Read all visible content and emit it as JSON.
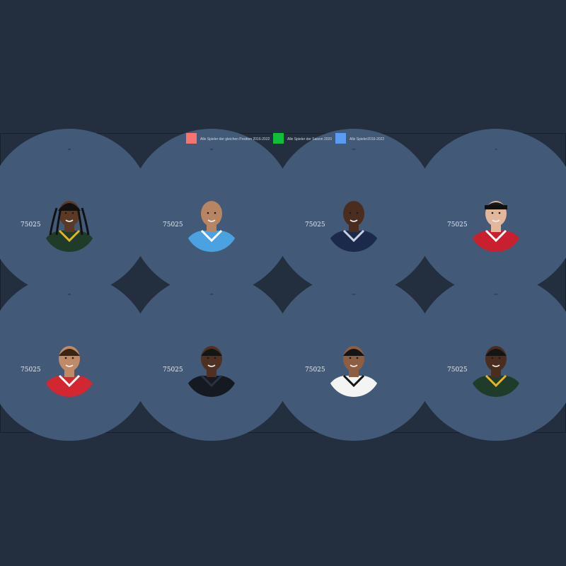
{
  "legend": {
    "items": [
      {
        "label": "Alle Spieler der gleichen Position 2016-2022",
        "color": "#f87272"
      },
      {
        "label": "Alle Spieler der Saison 2020",
        "color": "#0fbf3c"
      },
      {
        "label": "Alle Spieler2016-2022",
        "color": "#5b9cf0"
      }
    ]
  },
  "colors": {
    "page_background": "#232f3e",
    "panel_background": "#425a78",
    "panel_border": "#17202b"
  },
  "chart_data": {
    "type": "radar",
    "title": "",
    "cards": [
      {
        "position": "QB",
        "score_label": "75025",
        "jersey": "green-gold",
        "skin": "#5a3a26",
        "hair": "dreads"
      },
      {
        "position": "RB",
        "score_label": "75025",
        "jersey": "powder-blue",
        "skin": "#b78562",
        "hair": "bald"
      },
      {
        "position": "WR",
        "score_label": "75025",
        "jersey": "navy",
        "skin": "#4a2d1e",
        "hair": "bald"
      },
      {
        "position": "TE",
        "score_label": "75025",
        "jersey": "red",
        "skin": "#e3b79c",
        "hair": "headband"
      },
      {
        "position": "QB",
        "score_label": "75025",
        "jersey": "red-white",
        "skin": "#c08a66",
        "hair": "curly"
      },
      {
        "position": "RB",
        "score_label": "75025",
        "jersey": "black",
        "skin": "#4f3022",
        "hair": "short"
      },
      {
        "position": "WR",
        "score_label": "75025",
        "jersey": "white-black",
        "skin": "#8e5e43",
        "hair": "short"
      },
      {
        "position": "WR",
        "score_label": "75025",
        "jersey": "green-gold",
        "skin": "#4a2d1e",
        "hair": "short"
      }
    ]
  }
}
